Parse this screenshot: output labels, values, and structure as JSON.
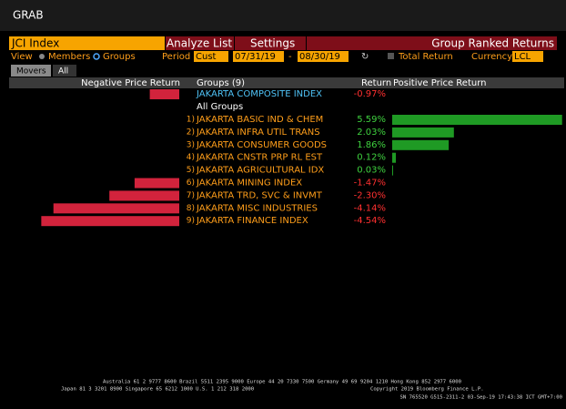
{
  "header": {
    "title": "GRAB"
  },
  "toolbar": {
    "index": "JCI Index",
    "analyze": "Analyze List",
    "settings": "Settings",
    "ranked": "Group Ranked Returns"
  },
  "options": {
    "view": "View",
    "members": "Members",
    "groups": "Groups",
    "period": "Period",
    "period_value": "Cust",
    "start": "07/31/19",
    "separator": "-",
    "end": "08/30/19",
    "total_return": "Total Return",
    "currency": "Currency",
    "currency_value": "LCL"
  },
  "tabs": [
    "Movers",
    "All"
  ],
  "table": {
    "columns": [
      "Negative Price Return",
      "Groups (9)",
      "Return",
      "Positive Price Return"
    ],
    "index_row": {
      "name": "JAKARTA COMPOSITE INDEX",
      "value": -0.97,
      "label": "-0.97%"
    },
    "group_heading": "All Groups",
    "rows": [
      {
        "rank": "1)",
        "name": "JAKARTA BASIC IND & CHEM",
        "value": 5.59,
        "label": "5.59%"
      },
      {
        "rank": "2)",
        "name": "JAKARTA INFRA UTIL TRANS",
        "value": 2.03,
        "label": "2.03%"
      },
      {
        "rank": "3)",
        "name": "JAKARTA CONSUMER GOODS",
        "value": 1.86,
        "label": "1.86%"
      },
      {
        "rank": "4)",
        "name": "JAKARTA CNSTR PRP RL EST",
        "value": 0.12,
        "label": "0.12%"
      },
      {
        "rank": "5)",
        "name": "JAKARTA AGRICULTURAL IDX",
        "value": 0.03,
        "label": "0.03%"
      },
      {
        "rank": "6)",
        "name": "JAKARTA MINING INDEX",
        "value": -1.47,
        "label": "-1.47%"
      },
      {
        "rank": "7)",
        "name": "JAKARTA TRD, SVC & INVMT",
        "value": -2.3,
        "label": "-2.30%"
      },
      {
        "rank": "8)",
        "name": "JAKARTA MISC INDUSTRIES",
        "value": -4.14,
        "label": "-4.14%"
      },
      {
        "rank": "9)",
        "name": "JAKARTA FINANCE INDEX",
        "value": -4.54,
        "label": "-4.54%"
      }
    ]
  },
  "footer": {
    "lines": [
      "Australia 61 2 9777 8600 Brazil 5511 2395 9000 Europe 44 20 7330 7500 Germany 49 69 9204 1210 Hong Kong 852 2977 6000",
      "Japan 81 3 3201 8900    Singapore 65 6212 1000    U.S. 1 212 318 2000",
      "Copyright 2019 Bloomberg Finance L.P.",
      "SN 765520 G515-2311-2 03-Sep-19 17:43:38 ICT  GMT+7:00"
    ]
  }
}
